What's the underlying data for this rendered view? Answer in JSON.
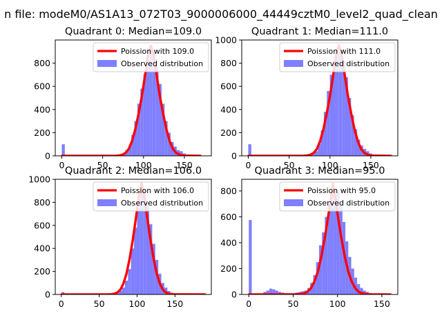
{
  "figure": {
    "suptitle": "n file: modeM0/AS1A13_072T03_9000006000_44449cztM0_level2_quad_clean"
  },
  "colors": {
    "fit_line": "#ff0000",
    "histogram": "#7f7fff",
    "axes": "#000000",
    "background": "#ffffff"
  },
  "chart_data": [
    {
      "type": "bar",
      "title": "Quadrant 0: Median=109.0",
      "xlim": [
        -8,
        183
      ],
      "ylim": [
        0,
        1000
      ],
      "xticks": [
        0,
        50,
        100,
        150
      ],
      "yticks": [
        0,
        200,
        400,
        600,
        800
      ],
      "legend_location": "upper-right",
      "bin_width": 3.7,
      "series": [
        {
          "name": "Poission with 109.0",
          "type": "line",
          "mean": 109.0,
          "x": [
            0,
            60,
            66,
            70,
            74,
            78,
            82,
            86,
            90,
            94,
            98,
            102,
            106,
            109,
            112,
            116,
            120,
            124,
            128,
            132,
            136,
            140,
            145,
            150,
            170
          ],
          "y": [
            0,
            0,
            1,
            3,
            9,
            25,
            60,
            128,
            230,
            365,
            515,
            700,
            890,
            950,
            890,
            700,
            515,
            365,
            230,
            128,
            60,
            25,
            8,
            2,
            0
          ]
        },
        {
          "name": "Observed distribution",
          "type": "histogram",
          "x": [
            0,
            3.7,
            7.4,
            11.1,
            14.8,
            18.5,
            22.2,
            25.9,
            29.6,
            33.3,
            37,
            40.7,
            44.4,
            48.1,
            51.8,
            55.5,
            59.2,
            62.9,
            66.6,
            70.3,
            74,
            77.7,
            81.4,
            85.1,
            88.8,
            92.5,
            96.2,
            99.9,
            103.6,
            107.3,
            111,
            114.7,
            118.4,
            122.1,
            125.8,
            129.5,
            133.2,
            136.9,
            140.6,
            144.3,
            148,
            151.7,
            155.4,
            159.1,
            162.8,
            166.5
          ],
          "y": [
            100,
            0,
            0,
            0,
            0,
            0,
            0,
            0,
            0,
            0,
            0,
            0,
            0,
            0,
            0,
            0,
            0,
            0,
            0,
            0,
            20,
            50,
            80,
            180,
            300,
            450,
            580,
            700,
            820,
            900,
            880,
            780,
            620,
            450,
            300,
            200,
            120,
            80,
            50,
            40,
            20,
            10,
            5,
            0,
            0,
            0
          ]
        }
      ]
    },
    {
      "type": "bar",
      "title": "Quadrant 1: Median=111.0",
      "xlim": [
        -8,
        183
      ],
      "ylim": [
        0,
        1000
      ],
      "xticks": [
        0,
        50,
        100,
        150
      ],
      "yticks": [
        0,
        200,
        400,
        600,
        800,
        1000
      ],
      "legend_location": "upper-right",
      "bin_width": 3.7,
      "series": [
        {
          "name": "Poission with 111.0",
          "type": "line",
          "mean": 111.0,
          "x": [
            0,
            62,
            68,
            72,
            76,
            80,
            84,
            88,
            92,
            96,
            100,
            104,
            108,
            111,
            114,
            118,
            122,
            126,
            130,
            134,
            138,
            142,
            147,
            152,
            175
          ],
          "y": [
            0,
            0,
            1,
            3,
            9,
            25,
            60,
            128,
            230,
            365,
            515,
            700,
            890,
            955,
            890,
            700,
            515,
            365,
            230,
            128,
            60,
            25,
            8,
            2,
            0
          ]
        },
        {
          "name": "Observed distribution",
          "type": "histogram",
          "x": [
            0,
            3.7,
            7.4,
            11.1,
            14.8,
            18.5,
            22.2,
            25.9,
            29.6,
            33.3,
            37,
            40.7,
            44.4,
            48.1,
            51.8,
            55.5,
            59.2,
            62.9,
            66.6,
            70.3,
            74,
            77.7,
            81.4,
            85.1,
            88.8,
            92.5,
            96.2,
            99.9,
            103.6,
            107.3,
            111,
            114.7,
            118.4,
            122.1,
            125.8,
            129.5,
            133.2,
            136.9,
            140.6,
            144.3,
            148,
            151.7,
            155.4,
            159.1,
            162.8,
            166.5
          ],
          "y": [
            100,
            0,
            0,
            0,
            0,
            0,
            0,
            0,
            0,
            0,
            0,
            0,
            0,
            0,
            0,
            0,
            0,
            0,
            0,
            0,
            10,
            20,
            40,
            100,
            220,
            380,
            560,
            700,
            820,
            880,
            900,
            820,
            680,
            500,
            350,
            230,
            140,
            90,
            60,
            40,
            20,
            10,
            5,
            0,
            0,
            0
          ]
        }
      ]
    },
    {
      "type": "bar",
      "title": "Quadrant 2: Median=106.0",
      "xlim": [
        -8,
        198
      ],
      "ylim": [
        0,
        1000
      ],
      "xticks": [
        0,
        50,
        100,
        150
      ],
      "yticks": [
        0,
        200,
        400,
        600,
        800,
        1000
      ],
      "legend_location": "upper-right",
      "bin_width": 4.0,
      "series": [
        {
          "name": "Poission with 106.0",
          "type": "line",
          "mean": 106.0,
          "x": [
            0,
            60,
            66,
            70,
            74,
            78,
            82,
            86,
            90,
            94,
            98,
            102,
            106,
            110,
            114,
            118,
            122,
            126,
            130,
            134,
            138,
            142,
            148,
            190
          ],
          "y": [
            0,
            0,
            2,
            6,
            17,
            42,
            95,
            180,
            305,
            460,
            640,
            830,
            965,
            830,
            640,
            460,
            305,
            180,
            95,
            42,
            17,
            6,
            1,
            0
          ]
        },
        {
          "name": "Observed distribution",
          "type": "histogram",
          "x": [
            0,
            4,
            8,
            12,
            16,
            20,
            24,
            28,
            32,
            36,
            40,
            44,
            48,
            52,
            56,
            60,
            64,
            68,
            72,
            76,
            80,
            84,
            88,
            92,
            96,
            100,
            104,
            108,
            112,
            116,
            120,
            124,
            128,
            132,
            136,
            140,
            144,
            148,
            152,
            156
          ],
          "y": [
            20,
            0,
            0,
            0,
            0,
            0,
            0,
            0,
            0,
            0,
            0,
            0,
            0,
            0,
            0,
            0,
            0,
            0,
            10,
            30,
            60,
            120,
            220,
            400,
            580,
            750,
            900,
            920,
            800,
            610,
            440,
            300,
            180,
            100,
            60,
            30,
            15,
            5,
            0,
            0
          ]
        }
      ]
    },
    {
      "type": "bar",
      "title": "Quadrant 3: Median=95.0",
      "xlim": [
        -8,
        168
      ],
      "ylim": [
        0,
        890
      ],
      "xticks": [
        0,
        50,
        100,
        150
      ],
      "yticks": [
        0,
        200,
        400,
        600,
        800
      ],
      "legend_location": "upper-right",
      "bin_width": 3.3,
      "series": [
        {
          "name": "Poission with 95.0",
          "type": "line",
          "mean": 95.0,
          "x": [
            0,
            52,
            58,
            62,
            66,
            70,
            74,
            78,
            82,
            86,
            90,
            95,
            100,
            104,
            108,
            112,
            116,
            120,
            124,
            128,
            134,
            140,
            160
          ],
          "y": [
            0,
            0,
            3,
            8,
            20,
            48,
            100,
            180,
            300,
            450,
            625,
            855,
            625,
            450,
            300,
            180,
            100,
            48,
            20,
            8,
            2,
            0,
            0
          ]
        },
        {
          "name": "Observed distribution",
          "type": "histogram",
          "x": [
            0,
            3.3,
            6.6,
            9.9,
            13.2,
            16.5,
            19.8,
            23.1,
            26.4,
            29.7,
            33,
            36.3,
            39.6,
            42.9,
            46.2,
            49.5,
            52.8,
            56.1,
            59.4,
            62.7,
            66,
            69.3,
            72.6,
            75.9,
            79.2,
            82.5,
            85.8,
            89.1,
            92.4,
            95.7,
            99,
            102.3,
            105.6,
            108.9,
            112.2,
            115.5,
            118.8,
            122.1,
            125.4,
            128.7,
            132,
            135.3,
            138.6,
            141.9,
            145.2
          ],
          "y": [
            575,
            0,
            0,
            0,
            0,
            20,
            30,
            45,
            40,
            30,
            20,
            15,
            10,
            10,
            8,
            10,
            15,
            20,
            25,
            30,
            50,
            90,
            150,
            250,
            380,
            480,
            600,
            700,
            790,
            810,
            790,
            700,
            560,
            410,
            290,
            200,
            130,
            80,
            50,
            30,
            20,
            10,
            5,
            0,
            0
          ]
        }
      ]
    }
  ]
}
